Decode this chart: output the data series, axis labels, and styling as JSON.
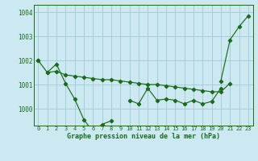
{
  "bg_color": "#cce8f0",
  "grid_color": "#a0c8d8",
  "line_color": "#1a6b1a",
  "title": "Graphe pression niveau de la mer (hPa)",
  "x_labels": [
    "0",
    "1",
    "2",
    "3",
    "4",
    "5",
    "6",
    "7",
    "8",
    "9",
    "10",
    "11",
    "12",
    "13",
    "14",
    "15",
    "16",
    "17",
    "18",
    "19",
    "20",
    "21",
    "22",
    "23"
  ],
  "ylim": [
    999.3,
    1004.3
  ],
  "yticks": [
    1000,
    1001,
    1002,
    1003,
    1004
  ],
  "line1": [
    1002.0,
    1001.5,
    1001.55,
    1001.4,
    1001.35,
    1001.3,
    1001.25,
    1001.2,
    1001.2,
    1001.15,
    1001.1,
    1001.05,
    1001.0,
    1001.0,
    1000.95,
    1000.9,
    1000.85,
    1000.8,
    1000.75,
    1000.7,
    1000.7,
    1001.05,
    null,
    null
  ],
  "line2": [
    null,
    1001.5,
    1001.85,
    1001.05,
    1000.4,
    999.55,
    999.05,
    999.35,
    999.5,
    null,
    1000.35,
    1000.2,
    1000.85,
    1000.35,
    1000.4,
    1000.35,
    1000.2,
    1000.35,
    1000.2,
    1000.3,
    1000.85,
    null,
    null,
    null
  ],
  "line3": [
    1002.0,
    null,
    null,
    null,
    null,
    null,
    null,
    null,
    null,
    null,
    null,
    null,
    null,
    null,
    null,
    null,
    null,
    null,
    null,
    null,
    1001.15,
    1002.85,
    1003.4,
    1003.85
  ]
}
